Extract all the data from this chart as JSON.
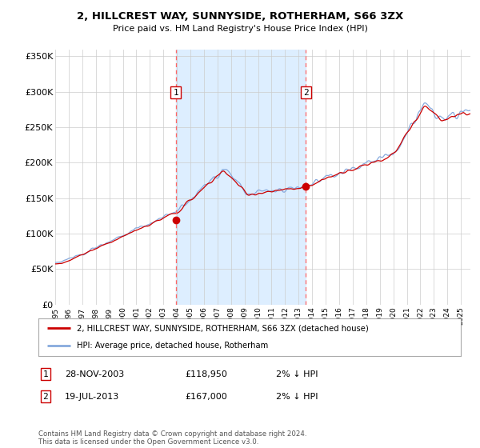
{
  "title": "2, HILLCREST WAY, SUNNYSIDE, ROTHERHAM, S66 3ZX",
  "subtitle": "Price paid vs. HM Land Registry's House Price Index (HPI)",
  "legend_line1": "2, HILLCREST WAY, SUNNYSIDE, ROTHERHAM, S66 3ZX (detached house)",
  "legend_line2": "HPI: Average price, detached house, Rotherham",
  "annotation1_label": "1",
  "annotation1_date": "28-NOV-2003",
  "annotation1_price": "£118,950",
  "annotation1_hpi": "2% ↓ HPI",
  "annotation2_label": "2",
  "annotation2_date": "19-JUL-2013",
  "annotation2_price": "£167,000",
  "annotation2_hpi": "2% ↓ HPI",
  "footer": "Contains HM Land Registry data © Crown copyright and database right 2024.\nThis data is licensed under the Open Government Licence v3.0.",
  "sale1_year": 2003.91,
  "sale1_price": 118950,
  "sale2_year": 2013.54,
  "sale2_price": 167000,
  "shade_start": 2003.91,
  "shade_end": 2013.54,
  "red_line_color": "#cc0000",
  "blue_line_color": "#88aadd",
  "shade_color": "#ddeeff",
  "background_color": "#ffffff",
  "grid_color": "#cccccc",
  "dashed_line_color": "#ff6666",
  "ylim": [
    0,
    360000
  ],
  "yticks": [
    0,
    50000,
    100000,
    150000,
    200000,
    250000,
    300000,
    350000
  ],
  "ytick_labels": [
    "£0",
    "£50K",
    "£100K",
    "£150K",
    "£200K",
    "£250K",
    "£300K",
    "£350K"
  ],
  "xlim_start": 1995.0,
  "xlim_end": 2025.7
}
